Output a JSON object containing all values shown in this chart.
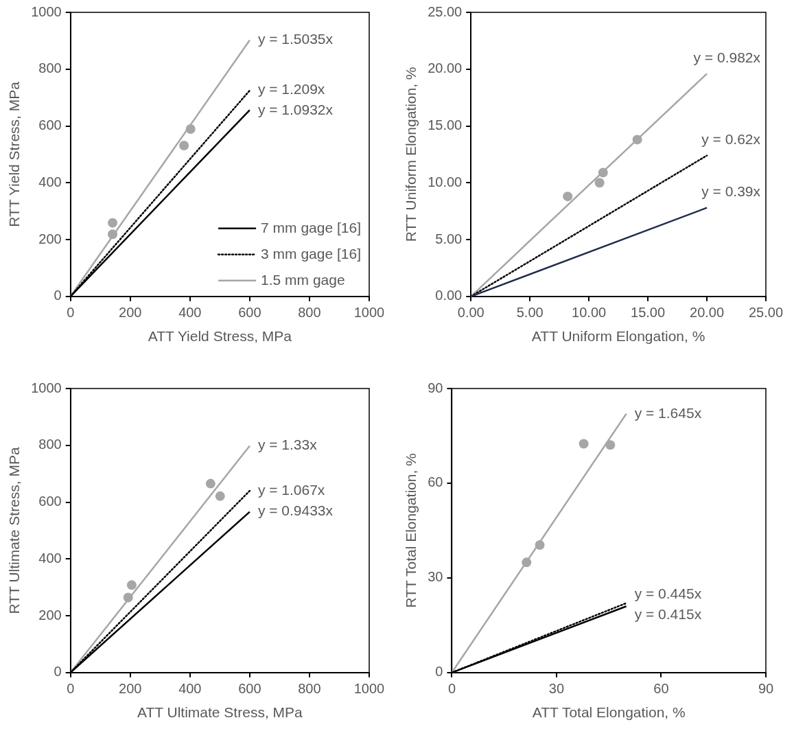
{
  "chart_data": [
    {
      "type": "scatter",
      "xlabel": "ATT Yield Stress, MPa",
      "ylabel": "RTT Yield Stress, MPa",
      "xlim": [
        0,
        1000
      ],
      "ylim": [
        0,
        1000
      ],
      "xticks": [
        0,
        200,
        400,
        600,
        800,
        1000
      ],
      "yticks": [
        0,
        200,
        400,
        600,
        800,
        1000
      ],
      "grid": false,
      "legend": "bottom right",
      "series": [
        {
          "name": "7 mm gage [16]",
          "type": "line",
          "x": [
            0,
            600
          ],
          "values": [
            0,
            656
          ],
          "color": "#000000",
          "line_style": "solid",
          "marker": "none"
        },
        {
          "name": "3 mm gage [16]",
          "type": "line",
          "x": [
            0,
            600
          ],
          "values": [
            0,
            725
          ],
          "color": "#000000",
          "line_style": "dotted",
          "marker": "none"
        },
        {
          "name": "1.5 mm gage",
          "type": "line",
          "x": [
            0,
            600
          ],
          "values": [
            0,
            902
          ],
          "color": "#a6a6a6",
          "line_style": "solid",
          "marker": "none"
        },
        {
          "type": "scatter",
          "x": [
            141,
            141,
            402,
            380
          ],
          "values": [
            259,
            219,
            589,
            531
          ],
          "color": "#a6a6a6",
          "marker": "circle"
        }
      ],
      "annotations": [
        {
          "text": "y = 1.5035x",
          "x": 600,
          "y": 902
        },
        {
          "text": "y = 1.209x",
          "x": 600,
          "y": 725
        },
        {
          "text": "y = 1.0932x",
          "x": 600,
          "y": 656
        }
      ]
    },
    {
      "type": "scatter",
      "xlabel": "ATT Uniform Elongation, %",
      "ylabel": "RTT Uniform Elongation, %",
      "xlim": [
        0,
        25
      ],
      "ylim": [
        0,
        25
      ],
      "xticks": [
        {
          "value": 0,
          "label": "0.00"
        },
        {
          "value": 5,
          "label": "5.00"
        },
        {
          "value": 10,
          "label": "10.00"
        },
        {
          "value": 15,
          "label": "15.00"
        },
        {
          "value": 20,
          "label": "20.00"
        },
        {
          "value": 25,
          "label": "25.00"
        }
      ],
      "yticks": [
        {
          "value": 0,
          "label": "0.00"
        },
        {
          "value": 5,
          "label": "5.00"
        },
        {
          "value": 10,
          "label": "10.00"
        },
        {
          "value": 15,
          "label": "15.00"
        },
        {
          "value": 20,
          "label": "20.00"
        },
        {
          "value": 25,
          "label": "25.00"
        }
      ],
      "grid": false,
      "series": [
        {
          "type": "line",
          "x": [
            0,
            20
          ],
          "values": [
            0,
            7.8
          ],
          "color": "#1f2d4a",
          "line_style": "solid",
          "marker": "none"
        },
        {
          "type": "line",
          "x": [
            0,
            20
          ],
          "values": [
            0,
            12.4
          ],
          "color": "#000000",
          "line_style": "dotted",
          "marker": "none"
        },
        {
          "type": "line",
          "x": [
            0,
            20
          ],
          "values": [
            0,
            19.6
          ],
          "color": "#a6a6a6",
          "line_style": "solid",
          "marker": "none"
        },
        {
          "type": "scatter",
          "x": [
            14.1,
            11.2,
            10.9,
            8.2
          ],
          "values": [
            13.8,
            10.9,
            10.0,
            8.8
          ],
          "color": "#a6a6a6",
          "marker": "circle"
        }
      ],
      "annotations": [
        {
          "text": "y = 0.982x",
          "x": 20,
          "y": 19.6
        },
        {
          "text": "y = 0.62x",
          "x": 20,
          "y": 12.4
        },
        {
          "text": "y = 0.39x",
          "x": 20,
          "y": 7.8
        }
      ]
    },
    {
      "type": "scatter",
      "xlabel": "ATT Ultimate Stress, MPa",
      "ylabel": "RTT Ultimate Stress, MPa",
      "xlim": [
        0,
        1000
      ],
      "ylim": [
        0,
        1000
      ],
      "xticks": [
        0,
        200,
        400,
        600,
        800,
        1000
      ],
      "yticks": [
        0,
        200,
        400,
        600,
        800,
        1000
      ],
      "grid": false,
      "series": [
        {
          "type": "line",
          "x": [
            0,
            600
          ],
          "values": [
            0,
            566
          ],
          "color": "#000000",
          "line_style": "solid",
          "marker": "none"
        },
        {
          "type": "line",
          "x": [
            0,
            600
          ],
          "values": [
            0,
            640
          ],
          "color": "#000000",
          "line_style": "dotted",
          "marker": "none"
        },
        {
          "type": "line",
          "x": [
            0,
            600
          ],
          "values": [
            0,
            798
          ],
          "color": "#a6a6a6",
          "line_style": "solid",
          "marker": "none"
        },
        {
          "type": "scatter",
          "x": [
            469,
            501,
            205,
            193
          ],
          "values": [
            665,
            621,
            308,
            264
          ],
          "color": "#a6a6a6",
          "marker": "circle"
        }
      ],
      "annotations": [
        {
          "text": "y = 1.33x",
          "x": 600,
          "y": 798
        },
        {
          "text": "y = 1.067x",
          "x": 600,
          "y": 640
        },
        {
          "text": "y = 0.9433x",
          "x": 600,
          "y": 566
        }
      ]
    },
    {
      "type": "scatter",
      "xlabel": "ATT Total Elongation, %",
      "ylabel": "RTT Total Elongation, %",
      "xlim": [
        0,
        90
      ],
      "ylim": [
        0,
        90
      ],
      "xticks": [
        0,
        30,
        60,
        90
      ],
      "yticks": [
        0,
        30,
        60,
        90
      ],
      "grid": false,
      "series": [
        {
          "type": "line",
          "x": [
            0,
            50
          ],
          "values": [
            0,
            21
          ],
          "color": "#000000",
          "line_style": "solid",
          "marker": "none"
        },
        {
          "type": "line",
          "x": [
            0,
            50
          ],
          "values": [
            0,
            22
          ],
          "color": "#000000",
          "line_style": "dotted",
          "marker": "none"
        },
        {
          "type": "line",
          "x": [
            0,
            50
          ],
          "values": [
            0,
            82
          ],
          "color": "#a6a6a6",
          "line_style": "solid",
          "marker": "none"
        },
        {
          "type": "scatter",
          "x": [
            37.8,
            45.4,
            25.2,
            21.4
          ],
          "values": [
            72.5,
            72.1,
            40.4,
            34.9
          ],
          "color": "#a6a6a6",
          "marker": "circle"
        }
      ],
      "annotations": [
        {
          "text": "y = 1.645x",
          "x": 50,
          "y": 82
        },
        {
          "text": "y = 0.445x",
          "x": 50,
          "y": 22
        },
        {
          "text": "y = 0.415x",
          "x": 50,
          "y": 21
        }
      ]
    }
  ]
}
